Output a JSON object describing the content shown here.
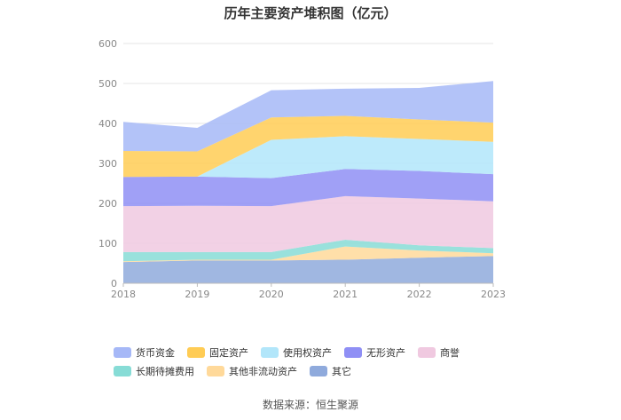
{
  "chart_data": {
    "type": "area",
    "stacked": true,
    "title": "历年主要资产堆积图（亿元）",
    "x": [
      "2018",
      "2019",
      "2020",
      "2021",
      "2022",
      "2023"
    ],
    "ylim": [
      0,
      600
    ],
    "yticks": [
      "0",
      "100",
      "200",
      "300",
      "400",
      "500",
      "600"
    ],
    "grid": true,
    "legend_position": "bottom",
    "series": [
      {
        "name": "其它",
        "color": "#8faadc",
        "values": [
          53,
          57,
          57,
          59,
          64,
          68
        ]
      },
      {
        "name": "其他非流动资产",
        "color": "#ffd99a",
        "values": [
          2,
          2,
          2,
          33,
          18,
          7
        ]
      },
      {
        "name": "长期待摊费用",
        "color": "#87dcd6",
        "values": [
          23,
          19,
          19,
          17,
          13,
          13
        ]
      },
      {
        "name": "商誉",
        "color": "#f0c9e0",
        "values": [
          115,
          116,
          115,
          109,
          117,
          117
        ]
      },
      {
        "name": "无形资产",
        "color": "#8f8ff5",
        "values": [
          73,
          73,
          70,
          68,
          69,
          68
        ]
      },
      {
        "name": "使用权资产",
        "color": "#b2e6fa",
        "values": [
          0,
          0,
          96,
          82,
          80,
          81
        ]
      },
      {
        "name": "固定资产",
        "color": "#ffcc55",
        "values": [
          65,
          63,
          56,
          51,
          49,
          48
        ]
      },
      {
        "name": "货币资金",
        "color": "#a6b8f7",
        "values": [
          73,
          59,
          68,
          68,
          79,
          104
        ]
      }
    ],
    "legend_order": [
      "货币资金",
      "固定资产",
      "使用权资产",
      "无形资产",
      "商誉",
      "长期待摊费用",
      "其他非流动资产",
      "其它"
    ]
  },
  "source": "数据来源：恒生聚源"
}
